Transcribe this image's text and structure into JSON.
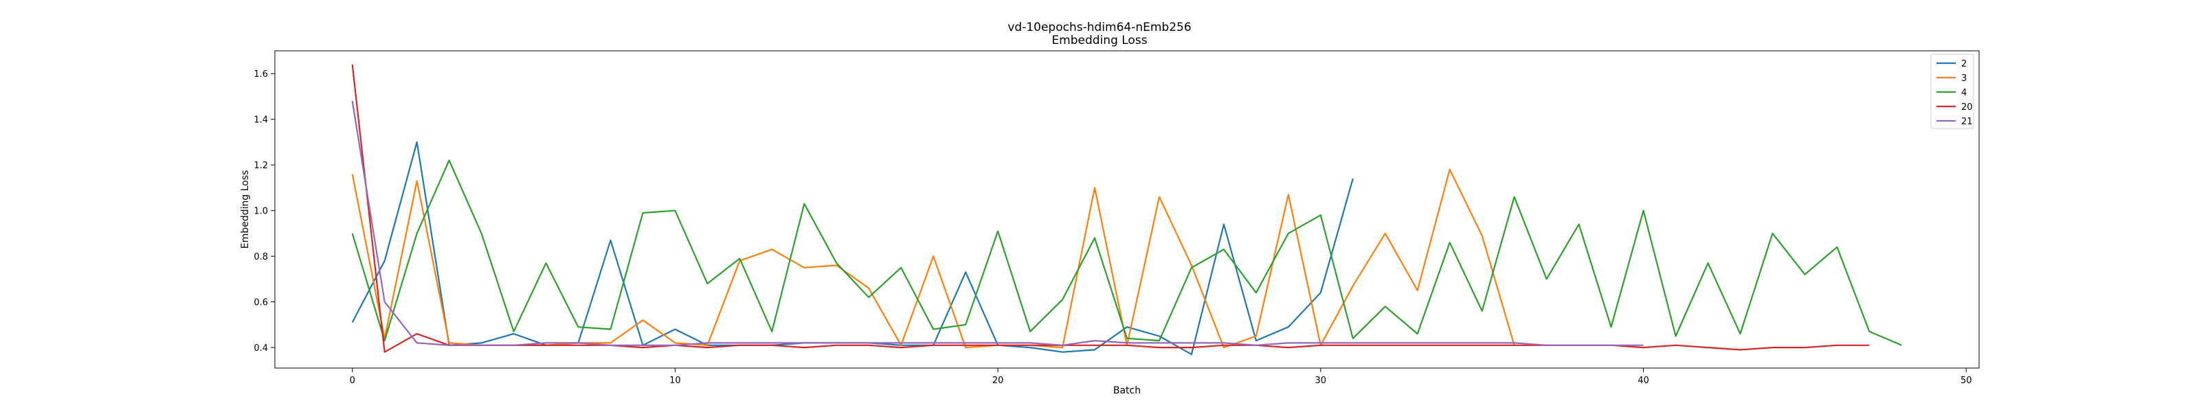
{
  "chart_data": {
    "type": "line",
    "title": "vd-10epochs-hdim64-nEmb256",
    "subtitle": "Embedding Loss",
    "xlabel": "Batch",
    "ylabel": "Embedding Loss",
    "xlim": [
      -2.4,
      50.4
    ],
    "ylim": [
      0.31,
      1.7
    ],
    "xticks": [
      0,
      10,
      20,
      30,
      40,
      50
    ],
    "yticks": [
      0.4,
      0.6,
      0.8,
      1.0,
      1.2,
      1.4,
      1.6
    ],
    "grid": false,
    "legend_position": "top-right",
    "series": [
      {
        "name": "2",
        "color": "#1f77b4",
        "values": [
          0.51,
          0.78,
          1.3,
          0.41,
          0.42,
          0.46,
          0.41,
          0.42,
          0.87,
          0.41,
          0.48,
          0.41,
          0.41,
          0.41,
          0.42,
          0.42,
          0.42,
          0.41,
          0.41,
          0.73,
          0.41,
          0.4,
          0.38,
          0.39,
          0.49,
          0.45,
          0.37,
          0.94,
          0.43,
          0.49,
          0.64,
          1.14
        ]
      },
      {
        "name": "3",
        "color": "#ff7f0e",
        "values": [
          1.16,
          0.44,
          1.13,
          0.42,
          0.41,
          0.41,
          0.41,
          0.42,
          0.42,
          0.52,
          0.42,
          0.41,
          0.78,
          0.83,
          0.75,
          0.76,
          0.66,
          0.41,
          0.8,
          0.4,
          0.41,
          0.41,
          0.4,
          1.1,
          0.41,
          1.06,
          0.76,
          0.4,
          0.45,
          1.07,
          0.41,
          0.67,
          0.9,
          0.65,
          1.18,
          0.89,
          0.41
        ]
      },
      {
        "name": "4",
        "color": "#2ca02c",
        "values": [
          0.9,
          0.43,
          0.9,
          1.22,
          0.9,
          0.47,
          0.77,
          0.49,
          0.48,
          0.99,
          1.0,
          0.68,
          0.79,
          0.47,
          1.03,
          0.77,
          0.62,
          0.75,
          0.48,
          0.5,
          0.91,
          0.47,
          0.61,
          0.88,
          0.44,
          0.43,
          0.75,
          0.83,
          0.64,
          0.9,
          0.98,
          0.44,
          0.58,
          0.46,
          0.86,
          0.56,
          1.06,
          0.7,
          0.94,
          0.49,
          1.0,
          0.45,
          0.77,
          0.46,
          0.9,
          0.72,
          0.84,
          0.47,
          0.41
        ]
      },
      {
        "name": "20",
        "color": "#d62728",
        "values": [
          1.64,
          0.38,
          0.46,
          0.41,
          0.41,
          0.41,
          0.41,
          0.41,
          0.41,
          0.4,
          0.41,
          0.4,
          0.41,
          0.41,
          0.4,
          0.41,
          0.41,
          0.4,
          0.41,
          0.41,
          0.41,
          0.41,
          0.41,
          0.41,
          0.41,
          0.4,
          0.4,
          0.41,
          0.41,
          0.4,
          0.41,
          0.41,
          0.41,
          0.41,
          0.41,
          0.41,
          0.41,
          0.41,
          0.41,
          0.41,
          0.4,
          0.41,
          0.4,
          0.39,
          0.4,
          0.4,
          0.41,
          0.41
        ]
      },
      {
        "name": "21",
        "color": "#9467bd",
        "values": [
          1.48,
          0.6,
          0.42,
          0.41,
          0.41,
          0.41,
          0.42,
          0.42,
          0.41,
          0.41,
          0.41,
          0.42,
          0.42,
          0.42,
          0.42,
          0.42,
          0.42,
          0.42,
          0.42,
          0.42,
          0.42,
          0.42,
          0.41,
          0.43,
          0.42,
          0.42,
          0.42,
          0.42,
          0.41,
          0.42,
          0.42,
          0.42,
          0.42,
          0.42,
          0.42,
          0.42,
          0.42,
          0.41,
          0.41,
          0.41,
          0.41
        ]
      }
    ]
  }
}
